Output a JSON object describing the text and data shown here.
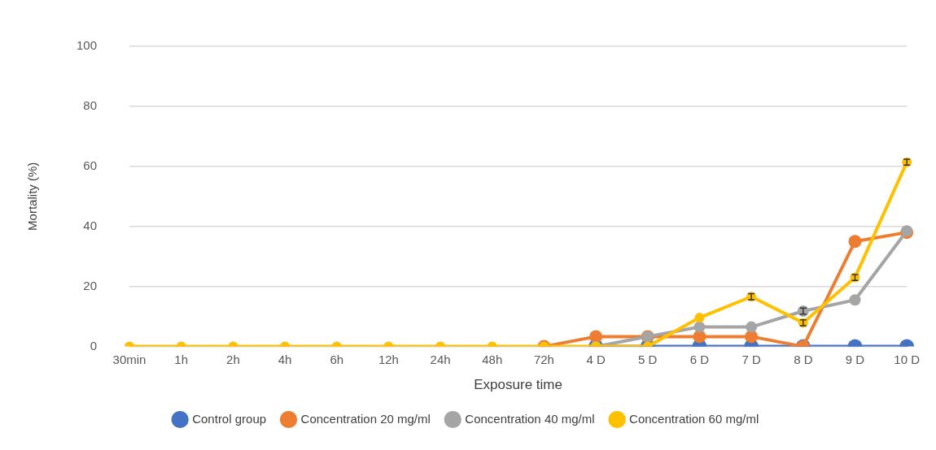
{
  "chart_data": {
    "type": "line",
    "xlabel": "Exposure time",
    "ylabel": "Mortality (%)",
    "categories": [
      "30min",
      "1h",
      "2h",
      "4h",
      "6h",
      "12h",
      "24h",
      "48h",
      "72h",
      "4 D",
      "5 D",
      "6 D",
      "7 D",
      "8 D",
      "9 D",
      "10 D"
    ],
    "series": [
      {
        "name": "Control group",
        "color": "#4472c4",
        "values": [
          null,
          null,
          null,
          null,
          null,
          null,
          null,
          null,
          null,
          0,
          0,
          0,
          0,
          0,
          0,
          0
        ]
      },
      {
        "name": "Concentration 20 mg/ml",
        "color": "#ed7d31",
        "values": [
          null,
          null,
          null,
          null,
          null,
          null,
          null,
          null,
          0,
          3.3,
          3.3,
          3.3,
          3.3,
          0,
          35,
          38
        ]
      },
      {
        "name": "Concentration 40 mg/ml",
        "color": "#a5a5a5",
        "values": [
          null,
          null,
          null,
          null,
          null,
          null,
          null,
          null,
          null,
          0,
          3.3,
          6.5,
          6.5,
          11.8,
          15.5,
          38.5
        ],
        "errors": [
          null,
          null,
          null,
          null,
          null,
          null,
          null,
          null,
          null,
          null,
          null,
          null,
          null,
          1,
          null,
          null
        ]
      },
      {
        "name": "Concentration 60 mg/ml",
        "color": "#ffc000",
        "values": [
          0,
          0,
          0,
          0,
          0,
          0,
          0,
          0,
          0,
          0,
          0,
          9.6,
          16.6,
          7.9,
          23,
          61.4
        ],
        "errors": [
          null,
          null,
          null,
          null,
          null,
          null,
          null,
          null,
          null,
          null,
          null,
          null,
          1,
          1,
          1,
          1
        ]
      }
    ],
    "ylim": [
      0,
      100
    ],
    "yticks": [
      0,
      20,
      40,
      60,
      80,
      100
    ],
    "grid": "y",
    "legend": "bottom",
    "marker": "circle",
    "line_style": "solid"
  }
}
